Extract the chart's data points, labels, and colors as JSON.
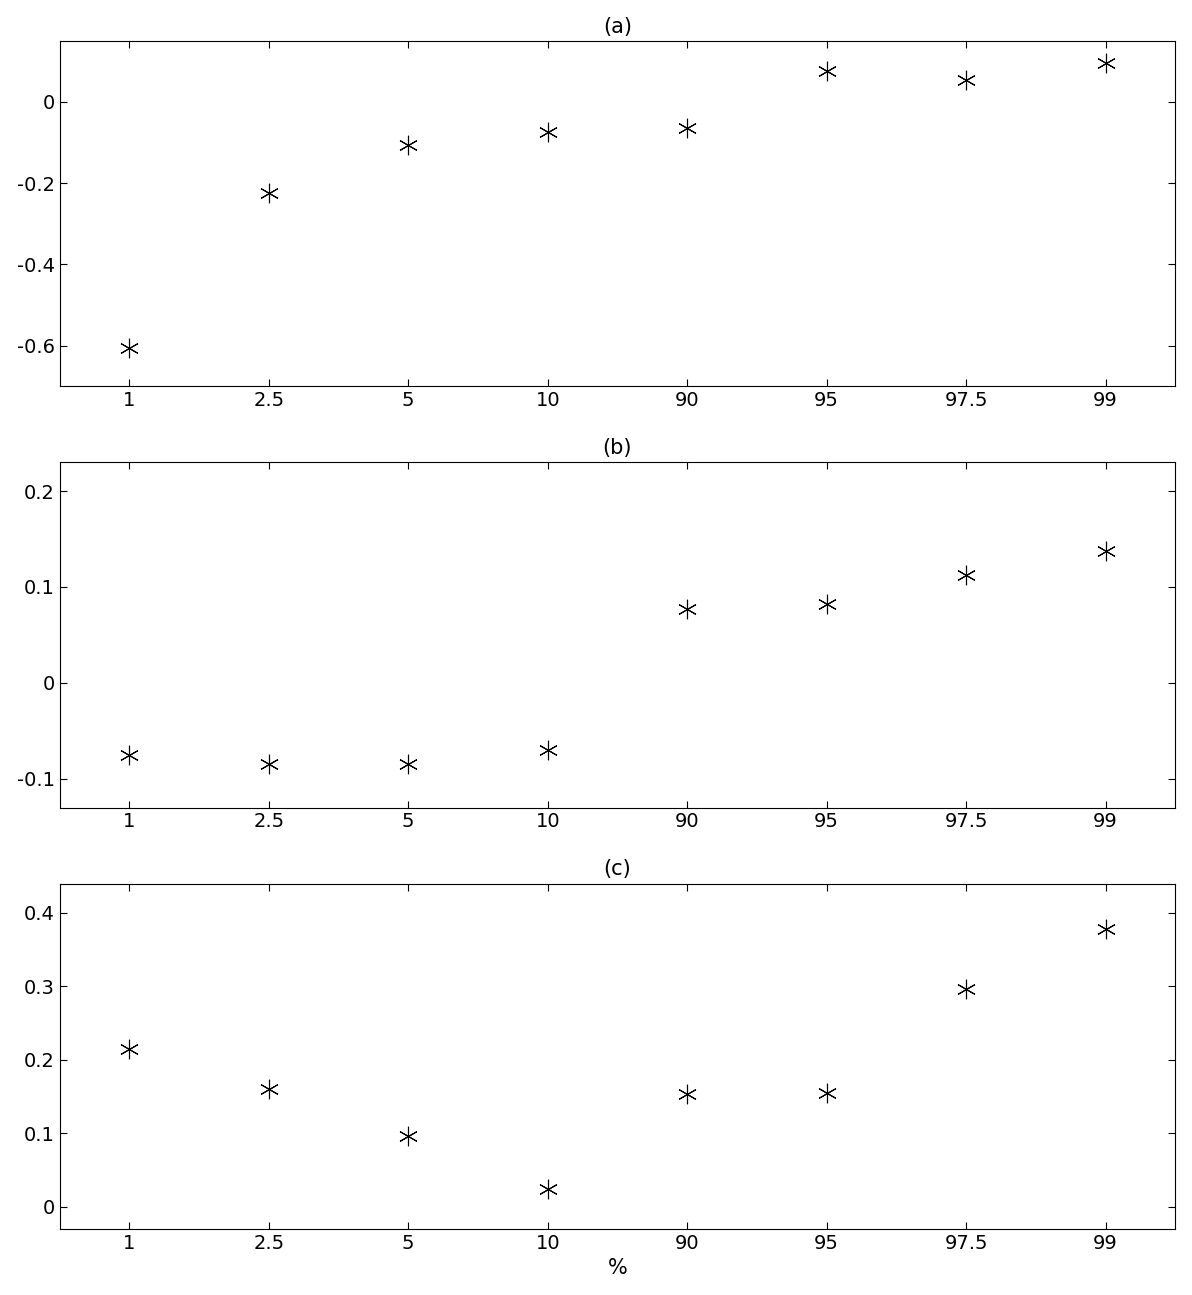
{
  "x_labels": [
    "1",
    "2.5",
    "5",
    "10",
    "90",
    "95",
    "97.5",
    "99"
  ],
  "x_positions": [
    1,
    2,
    3,
    4,
    5,
    6,
    7,
    8
  ],
  "panel_a": {
    "title": "(a)",
    "y_values": [
      -0.605,
      -0.225,
      -0.105,
      -0.075,
      -0.065,
      0.075,
      0.055,
      0.095
    ],
    "ylim": [
      -0.7,
      0.15
    ],
    "yticks": [
      -0.6,
      -0.4,
      -0.2,
      0.0
    ]
  },
  "panel_b": {
    "title": "(b)",
    "y_values": [
      -0.075,
      -0.085,
      -0.085,
      -0.07,
      0.077,
      0.082,
      0.113,
      0.138
    ],
    "ylim": [
      -0.13,
      0.23
    ],
    "yticks": [
      -0.1,
      0.0,
      0.1,
      0.2
    ]
  },
  "panel_c": {
    "title": "(c)",
    "y_values": [
      0.215,
      0.16,
      0.097,
      0.025,
      0.153,
      0.155,
      0.297,
      0.378
    ],
    "ylim": [
      -0.03,
      0.44
    ],
    "yticks": [
      0.0,
      0.1,
      0.2,
      0.3,
      0.4
    ]
  },
  "xlabel": "%",
  "marker_size": 14,
  "color": "black",
  "figure_size": [
    11.92,
    12.95
  ],
  "dpi": 100,
  "tick_fontsize": 14,
  "title_fontsize": 15
}
